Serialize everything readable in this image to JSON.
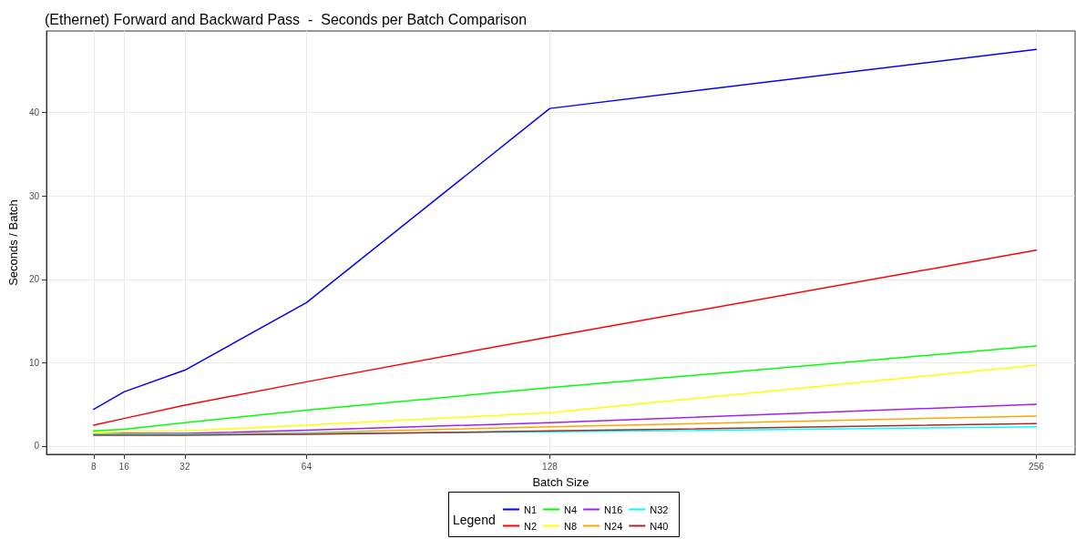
{
  "chart_data": {
    "type": "line",
    "title": "(Ethernet) Forward and Backward Pass  -  Seconds per Batch Comparison",
    "xlabel": "Batch Size",
    "ylabel": "Seconds / Batch",
    "legend_title": "Legend",
    "x": [
      8,
      16,
      32,
      64,
      128,
      256
    ],
    "series": [
      {
        "name": "N1",
        "color": "#0000ff",
        "values": [
          4.4,
          6.5,
          9.1,
          17.2,
          40.5,
          47.6
        ]
      },
      {
        "name": "N2",
        "color": "#ff0000",
        "values": [
          2.5,
          3.3,
          4.9,
          7.7,
          13.1,
          23.5
        ]
      },
      {
        "name": "N4",
        "color": "#00ff00",
        "values": [
          1.8,
          2.0,
          2.8,
          4.3,
          7.0,
          12.0
        ]
      },
      {
        "name": "N8",
        "color": "#ffff00",
        "values": [
          1.6,
          1.7,
          1.8,
          2.5,
          4.0,
          9.7
        ]
      },
      {
        "name": "N16",
        "color": "#a020f0",
        "values": [
          1.4,
          1.5,
          1.5,
          1.9,
          2.8,
          5.0
        ]
      },
      {
        "name": "N24",
        "color": "#ffa500",
        "values": [
          1.4,
          1.4,
          1.4,
          1.6,
          2.3,
          3.6
        ]
      },
      {
        "name": "N32",
        "color": "#00ffff",
        "values": [
          1.4,
          1.4,
          1.4,
          1.5,
          1.7,
          2.3
        ]
      },
      {
        "name": "N40",
        "color": "#a52a2a",
        "values": [
          1.3,
          1.3,
          1.3,
          1.4,
          1.8,
          2.7
        ]
      }
    ],
    "xlim": [
      -4.4,
      266.2
    ],
    "xticks": [
      8,
      16,
      32,
      64,
      128,
      256
    ],
    "ylim": [
      -1,
      49.8
    ],
    "yticks": [
      0,
      10,
      20,
      30,
      40
    ],
    "grid": true,
    "legend": "bottom",
    "marker": "none",
    "line_style": "solid"
  }
}
